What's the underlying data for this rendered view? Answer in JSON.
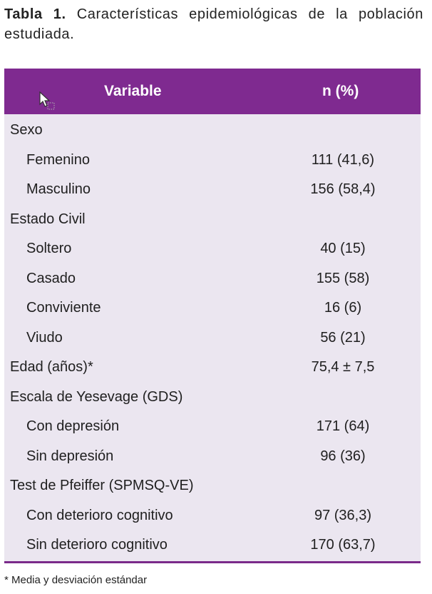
{
  "caption": {
    "label": "Tabla 1.",
    "text": "Características epidemiológicas de la población estudiada."
  },
  "table": {
    "header": {
      "variable": "Variable",
      "n_pct": "n (%)"
    },
    "rows": [
      {
        "label": "Sexo",
        "value": "",
        "indent": false
      },
      {
        "label": "Femenino",
        "value": "111 (41,6)",
        "indent": true
      },
      {
        "label": "Masculino",
        "value": "156 (58,4)",
        "indent": true
      },
      {
        "label": "Estado Civil",
        "value": "",
        "indent": false
      },
      {
        "label": "Soltero",
        "value": "40 (15)",
        "indent": true
      },
      {
        "label": "Casado",
        "value": "155 (58)",
        "indent": true
      },
      {
        "label": "Conviviente",
        "value": "16 (6)",
        "indent": true
      },
      {
        "label": "Viudo",
        "value": "56 (21)",
        "indent": true
      },
      {
        "label": "Edad (años)*",
        "value": "75,4 ± 7,5",
        "indent": false
      },
      {
        "label": "Escala de Yesevage (GDS)",
        "value": "",
        "indent": false
      },
      {
        "label": "Con depresión",
        "value": "171 (64)",
        "indent": true
      },
      {
        "label": "Sin depresión",
        "value": "96 (36)",
        "indent": true
      },
      {
        "label": "Test de Pfeiffer (SPMSQ-VE)",
        "value": "",
        "indent": false
      },
      {
        "label": "Con deterioro cognitivo",
        "value": "97 (36,3)",
        "indent": true
      },
      {
        "label": "Sin deterioro cognitivo",
        "value": "170 (63,7)",
        "indent": true
      }
    ]
  },
  "footnote": "* Media y desviación estándar",
  "colors": {
    "header_bg": "#7f2a90",
    "body_bg": "#ebe6f0",
    "rule": "#7a2a8a"
  },
  "icons": {
    "cursor": "mouse-pointer-icon"
  }
}
